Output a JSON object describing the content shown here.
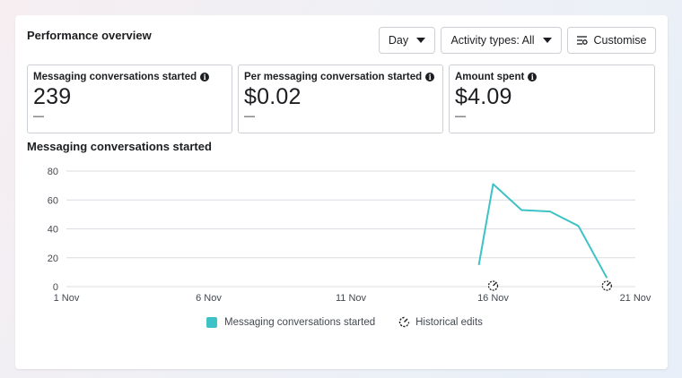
{
  "header": {
    "title": "Performance overview",
    "day_label": "Day",
    "activity_label": "Activity types: All",
    "customise_label": "Customise"
  },
  "metrics": [
    {
      "label": "Messaging conversations started",
      "value": "239",
      "change": "—"
    },
    {
      "label": "Per messaging conversation started",
      "value": "$0.02",
      "change": "—"
    },
    {
      "label": "Amount spent",
      "value": "$4.09",
      "change": "—"
    }
  ],
  "chart_title": "Messaging conversations started",
  "legend": {
    "series_label": "Messaging conversations started",
    "edits_label": "Historical edits"
  },
  "colors": {
    "series": "#3dc2c6",
    "grid": "#dadde1"
  },
  "chart_data": {
    "type": "line",
    "title": "Messaging conversations started",
    "xlabel": "",
    "ylabel": "",
    "x_range": [
      1,
      21
    ],
    "x_ticks": [
      {
        "day": 1,
        "label": "1 Nov"
      },
      {
        "day": 6,
        "label": "6 Nov"
      },
      {
        "day": 11,
        "label": "11 Nov"
      },
      {
        "day": 16,
        "label": "16 Nov"
      },
      {
        "day": 21,
        "label": "21 Nov"
      }
    ],
    "ylim": [
      0,
      80
    ],
    "y_ticks": [
      0,
      20,
      40,
      60,
      80
    ],
    "series": [
      {
        "name": "Messaging conversations started",
        "points": [
          {
            "day": 15.5,
            "value": 15
          },
          {
            "day": 16,
            "value": 71
          },
          {
            "day": 17,
            "value": 53
          },
          {
            "day": 18,
            "value": 52
          },
          {
            "day": 19,
            "value": 42
          },
          {
            "day": 20,
            "value": 6
          }
        ]
      }
    ],
    "historical_edits": [
      16,
      20
    ],
    "grid": true,
    "legend_position": "bottom"
  }
}
